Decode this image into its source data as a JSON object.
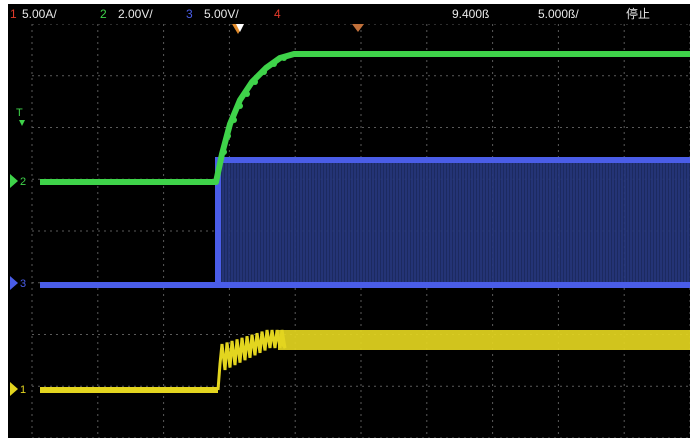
{
  "status_bar": {
    "ch1": {
      "num": "1",
      "scale": "5.00A/",
      "color": "#e03a2a"
    },
    "ch2": {
      "num": "2",
      "scale": "2.00V/",
      "color": "#3fd34a"
    },
    "ch3": {
      "num": "3",
      "scale": "5.00V/",
      "color": "#4a5de8"
    },
    "ch4": {
      "num": "4",
      "color": "#e03a2a"
    },
    "time_position": "9.400ß",
    "time_scale": "5.000ß/",
    "run_state": "停止"
  },
  "markers": {
    "t_label": "T",
    "ch2_label": "2",
    "ch3_label": "3",
    "ch1_label": "1"
  },
  "colors": {
    "green": "#3fd34a",
    "blue": "#4a5de8",
    "yellow": "#e3d51f",
    "grid": "#5a5a5a",
    "trigger": "#e08a2a"
  }
}
